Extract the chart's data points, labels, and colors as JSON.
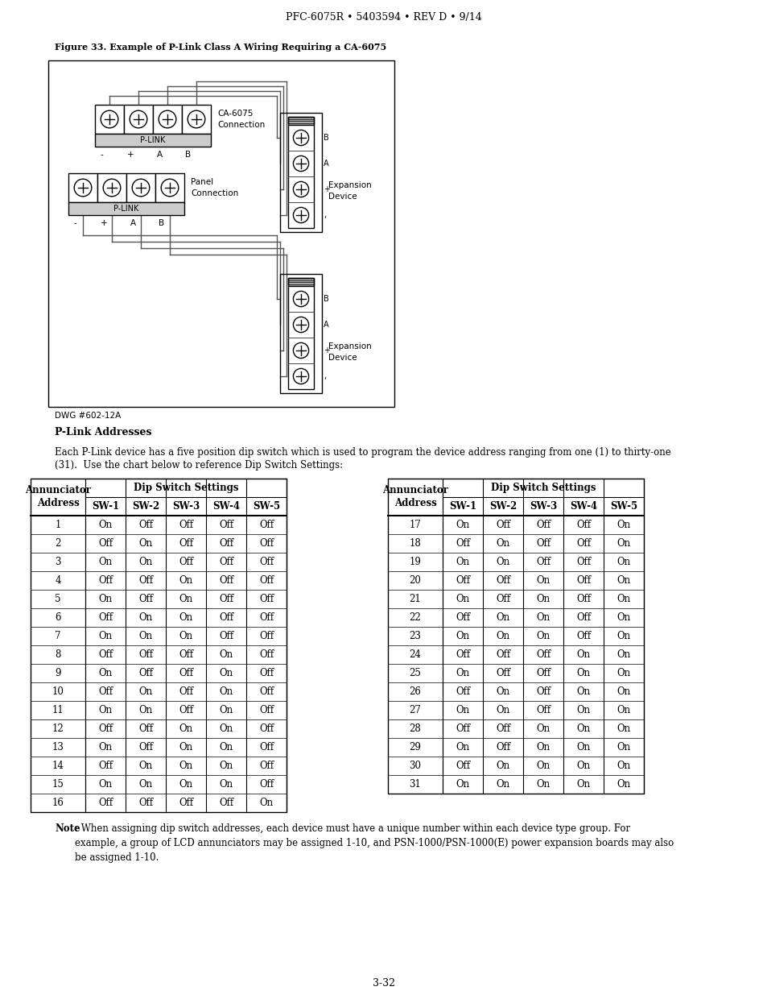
{
  "header_text": "PFC-6075R • 5403594 • REV D • 9/14",
  "figure_caption": "Figure 33. Example of P-Link Class A Wiring Requiring a CA-6075",
  "dwg_label": "DWG #602-12A",
  "section_title": "P-Link Addresses",
  "body_text_1": "Each P-Link device has a five position dip switch which is used to program the device address ranging from one (1) to thirty-one",
  "body_text_2": "(31).  Use the chart below to reference Dip Switch Settings:",
  "note_bold": "Note",
  "note_rest": ": When assigning dip switch addresses, each device must have a unique number within each device type group. For\nexample, a group of LCD annunciators may be assigned 1-10, and PSN-1000/PSN-1000(E) power expansion boards may also\nbe assigned 1-10.",
  "footer_text": "3-32",
  "table_left": {
    "group_header": "Dip Switch Settings",
    "rows": [
      [
        "1",
        "On",
        "Off",
        "Off",
        "Off",
        "Off"
      ],
      [
        "2",
        "Off",
        "On",
        "Off",
        "Off",
        "Off"
      ],
      [
        "3",
        "On",
        "On",
        "Off",
        "Off",
        "Off"
      ],
      [
        "4",
        "Off",
        "Off",
        "On",
        "Off",
        "Off"
      ],
      [
        "5",
        "On",
        "Off",
        "On",
        "Off",
        "Off"
      ],
      [
        "6",
        "Off",
        "On",
        "On",
        "Off",
        "Off"
      ],
      [
        "7",
        "On",
        "On",
        "On",
        "Off",
        "Off"
      ],
      [
        "8",
        "Off",
        "Off",
        "Off",
        "On",
        "Off"
      ],
      [
        "9",
        "On",
        "Off",
        "Off",
        "On",
        "Off"
      ],
      [
        "10",
        "Off",
        "On",
        "Off",
        "On",
        "Off"
      ],
      [
        "11",
        "On",
        "On",
        "Off",
        "On",
        "Off"
      ],
      [
        "12",
        "Off",
        "Off",
        "On",
        "On",
        "Off"
      ],
      [
        "13",
        "On",
        "Off",
        "On",
        "On",
        "Off"
      ],
      [
        "14",
        "Off",
        "On",
        "On",
        "On",
        "Off"
      ],
      [
        "15",
        "On",
        "On",
        "On",
        "On",
        "Off"
      ],
      [
        "16",
        "Off",
        "Off",
        "Off",
        "Off",
        "On"
      ]
    ]
  },
  "table_right": {
    "group_header": "Dip Switch Settings",
    "rows": [
      [
        "17",
        "On",
        "Off",
        "Off",
        "Off",
        "On"
      ],
      [
        "18",
        "Off",
        "On",
        "Off",
        "Off",
        "On"
      ],
      [
        "19",
        "On",
        "On",
        "Off",
        "Off",
        "On"
      ],
      [
        "20",
        "Off",
        "Off",
        "On",
        "Off",
        "On"
      ],
      [
        "21",
        "On",
        "Off",
        "On",
        "Off",
        "On"
      ],
      [
        "22",
        "Off",
        "On",
        "On",
        "Off",
        "On"
      ],
      [
        "23",
        "On",
        "On",
        "On",
        "Off",
        "On"
      ],
      [
        "24",
        "Off",
        "Off",
        "Off",
        "On",
        "On"
      ],
      [
        "25",
        "On",
        "Off",
        "Off",
        "On",
        "On"
      ],
      [
        "26",
        "Off",
        "On",
        "Off",
        "On",
        "On"
      ],
      [
        "27",
        "On",
        "On",
        "Off",
        "On",
        "On"
      ],
      [
        "28",
        "Off",
        "Off",
        "On",
        "On",
        "On"
      ],
      [
        "29",
        "On",
        "Off",
        "On",
        "On",
        "On"
      ],
      [
        "30",
        "Off",
        "On",
        "On",
        "On",
        "On"
      ],
      [
        "31",
        "On",
        "On",
        "On",
        "On",
        "On"
      ]
    ]
  }
}
